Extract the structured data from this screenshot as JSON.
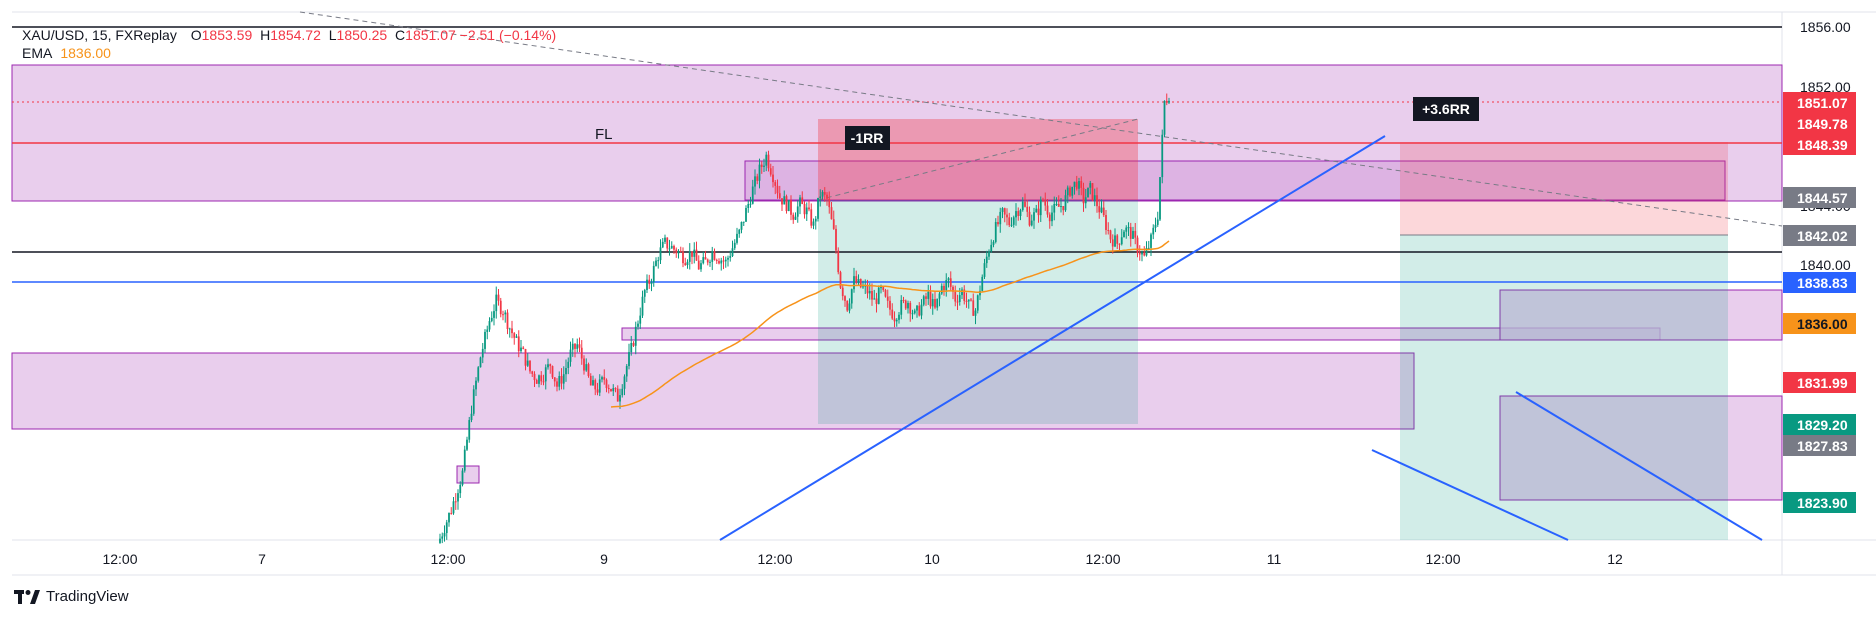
{
  "legend": {
    "symbol": "XAU/USD, 15, FXReplay",
    "open_label": "O",
    "open": "1853.59",
    "high_label": "H",
    "high": "1854.72",
    "low_label": "L",
    "low": "1850.25",
    "close_label": "C",
    "close": "1851.07",
    "change": "−2.51 (−0.14%)",
    "ema_label": "EMA",
    "ema_value": "1836.00"
  },
  "brand": {
    "name": "TradingView"
  },
  "chart_data": {
    "type": "candlestick",
    "symbol": "XAU/USD",
    "timeframe": "15",
    "y_axis_ticks": [
      1856.0,
      1852.0,
      1848.0,
      1844.0,
      1840.0
    ],
    "ylim": [
      1820.4,
      1856.7
    ],
    "x_axis_ticks": [
      "12:00",
      "7",
      "12:00",
      "9",
      "12:00",
      "10",
      "12:00",
      "11",
      "12:00",
      "12"
    ],
    "price_labels": [
      {
        "value": "1851.07",
        "kind": "last",
        "color": "#f23645"
      },
      {
        "value": "1849.78",
        "kind": "level",
        "color": "#f23645"
      },
      {
        "value": "1848.39",
        "kind": "level",
        "color": "#f23645"
      },
      {
        "value": "1844.57",
        "kind": "level",
        "color": "#787b86"
      },
      {
        "value": "1842.02",
        "kind": "level",
        "color": "#787b86"
      },
      {
        "value": "1838.83",
        "kind": "level",
        "color": "#2962ff"
      },
      {
        "value": "1836.00",
        "kind": "ema",
        "color": "#f7931a"
      },
      {
        "value": "1831.99",
        "kind": "level",
        "color": "#f23645"
      },
      {
        "value": "1829.20",
        "kind": "level",
        "color": "#089981"
      },
      {
        "value": "1827.83",
        "kind": "level",
        "color": "#787b86"
      },
      {
        "value": "1823.90",
        "kind": "level",
        "color": "#089981"
      }
    ],
    "horizontal_lines": [
      {
        "price": 1855.9,
        "color": "#131722"
      },
      {
        "price": 1848.39,
        "color": "#f23645"
      },
      {
        "price": 1841.0,
        "color": "#131722"
      },
      {
        "price": 1838.83,
        "color": "#2962ff"
      }
    ],
    "annotations": [
      {
        "text": "FL"
      },
      {
        "text": "-1RR"
      },
      {
        "text": "+3.6RR"
      }
    ],
    "ema_period_value": 1836.0,
    "colors": {
      "up": "#089981",
      "down": "#f23645",
      "zone": "#e1bee7",
      "zone_border": "#9c27b0",
      "trend": "#2962ff",
      "ema": "#f7931a"
    },
    "candle_path": [
      [
        0,
        1820.5
      ],
      [
        5,
        1822.5
      ],
      [
        10,
        1825.0
      ],
      [
        14,
        1829.5
      ],
      [
        18,
        1833.0
      ],
      [
        22,
        1835.5
      ],
      [
        25,
        1836.8
      ],
      [
        28,
        1836.2
      ],
      [
        31,
        1835.0
      ],
      [
        34,
        1834.0
      ],
      [
        37,
        1833.2
      ],
      [
        40,
        1832.0
      ],
      [
        43,
        1831.5
      ],
      [
        46,
        1831.8
      ],
      [
        49,
        1832.5
      ],
      [
        52,
        1831.0
      ],
      [
        55,
        1831.8
      ],
      [
        58,
        1833.2
      ],
      [
        61,
        1833.8
      ],
      [
        64,
        1832.5
      ],
      [
        67,
        1831.0
      ],
      [
        70,
        1830.8
      ],
      [
        73,
        1831.5
      ],
      [
        76,
        1830.8
      ],
      [
        79,
        1830.2
      ],
      [
        82,
        1831.8
      ],
      [
        85,
        1833.5
      ],
      [
        88,
        1835.5
      ],
      [
        91,
        1837.5
      ],
      [
        94,
        1838.5
      ],
      [
        97,
        1840.0
      ],
      [
        100,
        1840.8
      ],
      [
        103,
        1840.5
      ],
      [
        106,
        1840.2
      ],
      [
        109,
        1839.8
      ],
      [
        112,
        1840.2
      ],
      [
        115,
        1839.2
      ],
      [
        118,
        1839.5
      ],
      [
        121,
        1840.2
      ],
      [
        124,
        1839.8
      ],
      [
        127,
        1839.5
      ],
      [
        130,
        1840.5
      ],
      [
        133,
        1841.5
      ],
      [
        136,
        1843.0
      ],
      [
        139,
        1844.5
      ],
      [
        142,
        1845.8
      ],
      [
        145,
        1846.8
      ],
      [
        148,
        1845.5
      ],
      [
        151,
        1844.0
      ],
      [
        154,
        1843.5
      ],
      [
        157,
        1842.8
      ],
      [
        160,
        1843.5
      ],
      [
        163,
        1843.0
      ],
      [
        166,
        1842.0
      ],
      [
        169,
        1844.2
      ],
      [
        172,
        1843.8
      ],
      [
        175,
        1841.5
      ],
      [
        178,
        1838.0
      ],
      [
        181,
        1836.5
      ],
      [
        184,
        1838.2
      ],
      [
        187,
        1837.8
      ],
      [
        190,
        1837.5
      ],
      [
        193,
        1836.8
      ],
      [
        196,
        1837.5
      ],
      [
        199,
        1836.5
      ],
      [
        202,
        1835.8
      ],
      [
        205,
        1836.5
      ],
      [
        208,
        1836.8
      ],
      [
        211,
        1835.8
      ],
      [
        214,
        1836.5
      ],
      [
        217,
        1837.2
      ],
      [
        220,
        1836.2
      ],
      [
        223,
        1837.8
      ],
      [
        226,
        1838.2
      ],
      [
        229,
        1837.0
      ],
      [
        232,
        1837.5
      ],
      [
        235,
        1836.5
      ],
      [
        238,
        1836.2
      ],
      [
        241,
        1838.5
      ],
      [
        244,
        1840.5
      ],
      [
        247,
        1841.8
      ],
      [
        250,
        1842.8
      ],
      [
        253,
        1842.2
      ],
      [
        256,
        1843.0
      ],
      [
        259,
        1843.5
      ],
      [
        262,
        1842.5
      ],
      [
        265,
        1842.8
      ],
      [
        268,
        1843.8
      ],
      [
        271,
        1842.8
      ],
      [
        274,
        1843.2
      ],
      [
        277,
        1843.5
      ],
      [
        280,
        1844.5
      ],
      [
        283,
        1845.0
      ],
      [
        286,
        1843.8
      ],
      [
        289,
        1844.5
      ],
      [
        292,
        1843.5
      ],
      [
        295,
        1842.5
      ],
      [
        298,
        1841.2
      ],
      [
        301,
        1840.8
      ],
      [
        304,
        1841.8
      ],
      [
        307,
        1841.5
      ],
      [
        310,
        1840.5
      ],
      [
        313,
        1839.8
      ],
      [
        316,
        1841.0
      ],
      [
        319,
        1842.8
      ],
      [
        322,
        1850.5
      ],
      [
        324,
        1851.07
      ]
    ]
  }
}
